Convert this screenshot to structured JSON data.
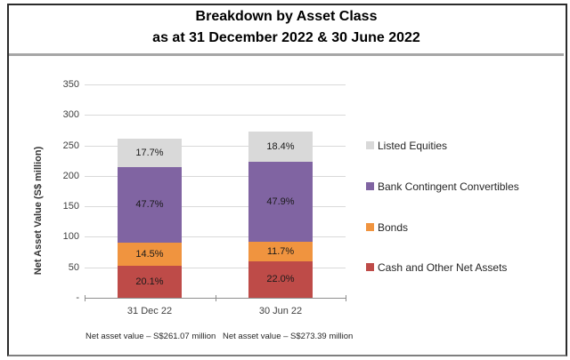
{
  "title": {
    "line1": "Breakdown by Asset Class",
    "line2": "as at 31 December 2022 & 30 June 2022"
  },
  "chart_data": {
    "type": "bar",
    "stacked": true,
    "title": "Breakdown by Asset Class as at 31 December 2022 & 30 June 2022",
    "ylabel": "Net Asset Value (S$ million)",
    "ylim": [
      0,
      350
    ],
    "ytick_step": 50,
    "ytick_labels": [
      "-",
      "50",
      "100",
      "150",
      "200",
      "250",
      "300",
      "350"
    ],
    "grid": true,
    "legend_position": "right",
    "categories": [
      "31 Dec 22",
      "30 Jun 22"
    ],
    "totals_million": [
      261.07,
      273.39
    ],
    "series": [
      {
        "name": "Cash and Other Net Assets",
        "color": "#BE4B48",
        "percent_values": [
          20.1,
          22.0
        ],
        "percent_labels": [
          "20.1%",
          "22.0%"
        ]
      },
      {
        "name": "Bonds",
        "color": "#F0943F",
        "percent_values": [
          14.5,
          11.7
        ],
        "percent_labels": [
          "14.5%",
          "11.7%"
        ]
      },
      {
        "name": "Bank Contingent Convertibles",
        "color": "#8064A2",
        "percent_values": [
          47.7,
          47.9
        ],
        "percent_labels": [
          "47.7%",
          "47.9%"
        ]
      },
      {
        "name": "Listed Equities",
        "color": "#D9D9D9",
        "percent_values": [
          17.7,
          18.4
        ],
        "percent_labels": [
          "17.7%",
          "18.4%"
        ]
      }
    ],
    "legend_items": [
      "Listed Equities",
      "Bank Contingent Convertibles",
      "Bonds",
      "Cash and Other Net Assets"
    ],
    "footnotes": [
      "Net asset value – S$261.07 million",
      "Net asset value – S$273.39 million"
    ]
  }
}
